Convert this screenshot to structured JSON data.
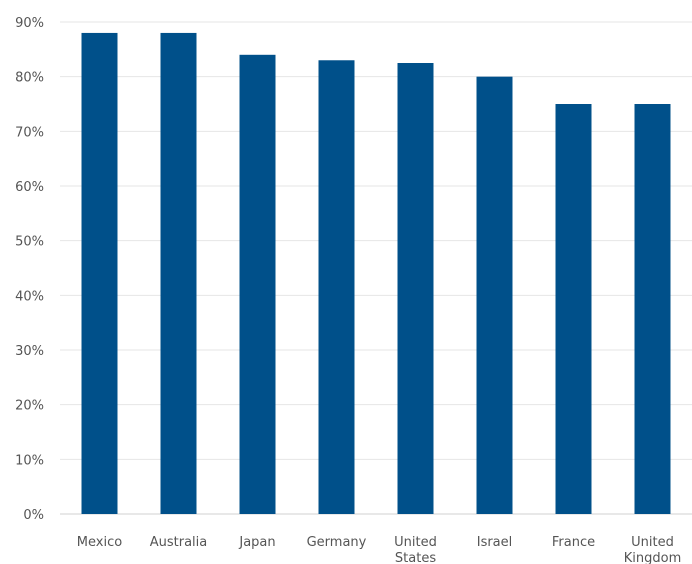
{
  "chart_data": {
    "type": "bar",
    "title": "",
    "xlabel": "",
    "ylabel": "",
    "ylim": [
      0,
      90
    ],
    "grid": true,
    "y_ticks": [
      "0%",
      "10%",
      "20%",
      "30%",
      "40%",
      "50%",
      "60%",
      "70%",
      "80%",
      "90%"
    ],
    "categories": [
      [
        "Mexico"
      ],
      [
        "Australia"
      ],
      [
        "Japan"
      ],
      [
        "Germany"
      ],
      [
        "United",
        "States"
      ],
      [
        "Israel"
      ],
      [
        "France"
      ],
      [
        "United",
        "Kingdom"
      ]
    ],
    "values": [
      88,
      88,
      84,
      83,
      82.5,
      80,
      75,
      75
    ],
    "bar_color": "#00508a"
  }
}
